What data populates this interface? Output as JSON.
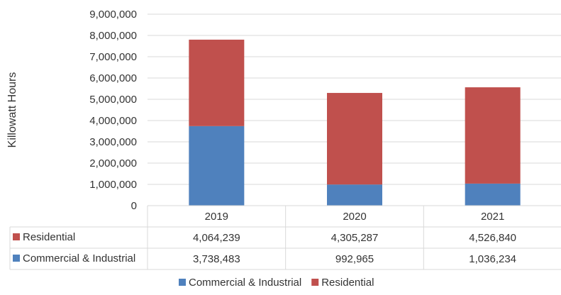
{
  "chart_data": {
    "type": "bar",
    "stacked": true,
    "categories": [
      "2019",
      "2020",
      "2021"
    ],
    "series": [
      {
        "name": "Commercial & Industrial",
        "values": [
          3738483,
          992965,
          1036234
        ],
        "labels": [
          "3,738,483",
          "992,965",
          "1,036,234"
        ],
        "color": "#4f81bd"
      },
      {
        "name": "Residential",
        "values": [
          4064239,
          4305287,
          4526840
        ],
        "labels": [
          "4,064,239",
          "4,305,287",
          "4,526,840"
        ],
        "color": "#c0504d"
      }
    ],
    "title": "",
    "xlabel": "",
    "ylabel": "Killowatt Hours",
    "ylim": [
      0,
      9000000
    ],
    "yticks": [
      {
        "value": 0,
        "label": "0"
      },
      {
        "value": 1000000,
        "label": "1,000,000"
      },
      {
        "value": 2000000,
        "label": "2,000,000"
      },
      {
        "value": 3000000,
        "label": "3,000,000"
      },
      {
        "value": 4000000,
        "label": "4,000,000"
      },
      {
        "value": 5000000,
        "label": "5,000,000"
      },
      {
        "value": 6000000,
        "label": "6,000,000"
      },
      {
        "value": 7000000,
        "label": "7,000,000"
      },
      {
        "value": 8000000,
        "label": "8,000,000"
      },
      {
        "value": 9000000,
        "label": "9,000,000"
      }
    ],
    "grid": true,
    "data_table": true,
    "legend": {
      "position": "bottom",
      "order": [
        "Commercial & Industrial",
        "Residential"
      ]
    }
  }
}
